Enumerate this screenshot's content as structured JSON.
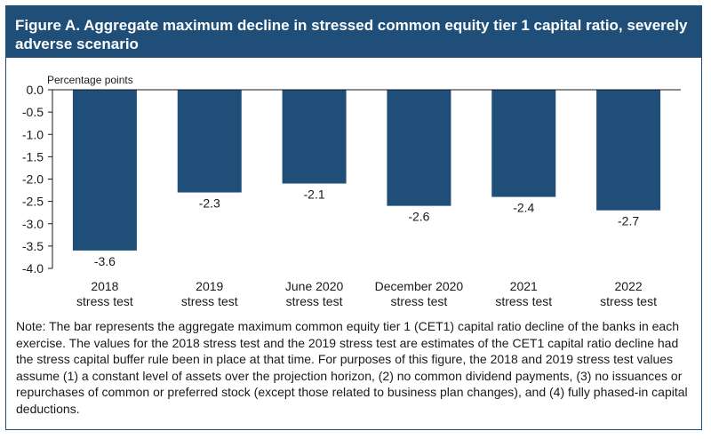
{
  "title": "Figure A.  Aggregate maximum decline in stressed common equity tier 1 capital ratio, severely adverse scenario",
  "chart_data": {
    "type": "bar",
    "title": "Figure A.  Aggregate maximum decline in stressed common equity tier 1 capital ratio, severely adverse scenario",
    "ylabel": "Percentage points",
    "xlabel": "",
    "ylim": [
      -4.0,
      0.0
    ],
    "yticks": [
      "0.0",
      "-0.5",
      "-1.0",
      "-1.5",
      "-2.0",
      "-2.5",
      "-3.0",
      "-3.5",
      "-4.0"
    ],
    "categories": [
      [
        "2018",
        "stress test"
      ],
      [
        "2019",
        "stress test"
      ],
      [
        "June 2020",
        "stress test"
      ],
      [
        "December 2020",
        "stress test"
      ],
      [
        "2021",
        "stress test"
      ],
      [
        "2022",
        "stress test"
      ]
    ],
    "values": [
      -3.6,
      -2.3,
      -2.1,
      -2.6,
      -2.4,
      -2.7
    ],
    "value_labels": [
      "-3.6",
      "-2.3",
      "-2.1",
      "-2.6",
      "-2.4",
      "-2.7"
    ],
    "bar_color": "#1f4e79",
    "grid": false
  },
  "note": "Note: The bar represents the aggregate maximum common equity tier 1 (CET1) capital ratio decline of the banks in each exercise. The values for the 2018 stress test and the 2019 stress test are estimates of the CET1 capital ratio decline had the stress capital buffer rule been in place at that time. For purposes of this figure, the 2018 and 2019 stress test values assume (1) a constant level of assets over the projection horizon, (2) no common dividend payments, (3) no issuances or repurchases of common or preferred stock (except those related to business plan changes), and (4) fully phased-in capital deductions."
}
